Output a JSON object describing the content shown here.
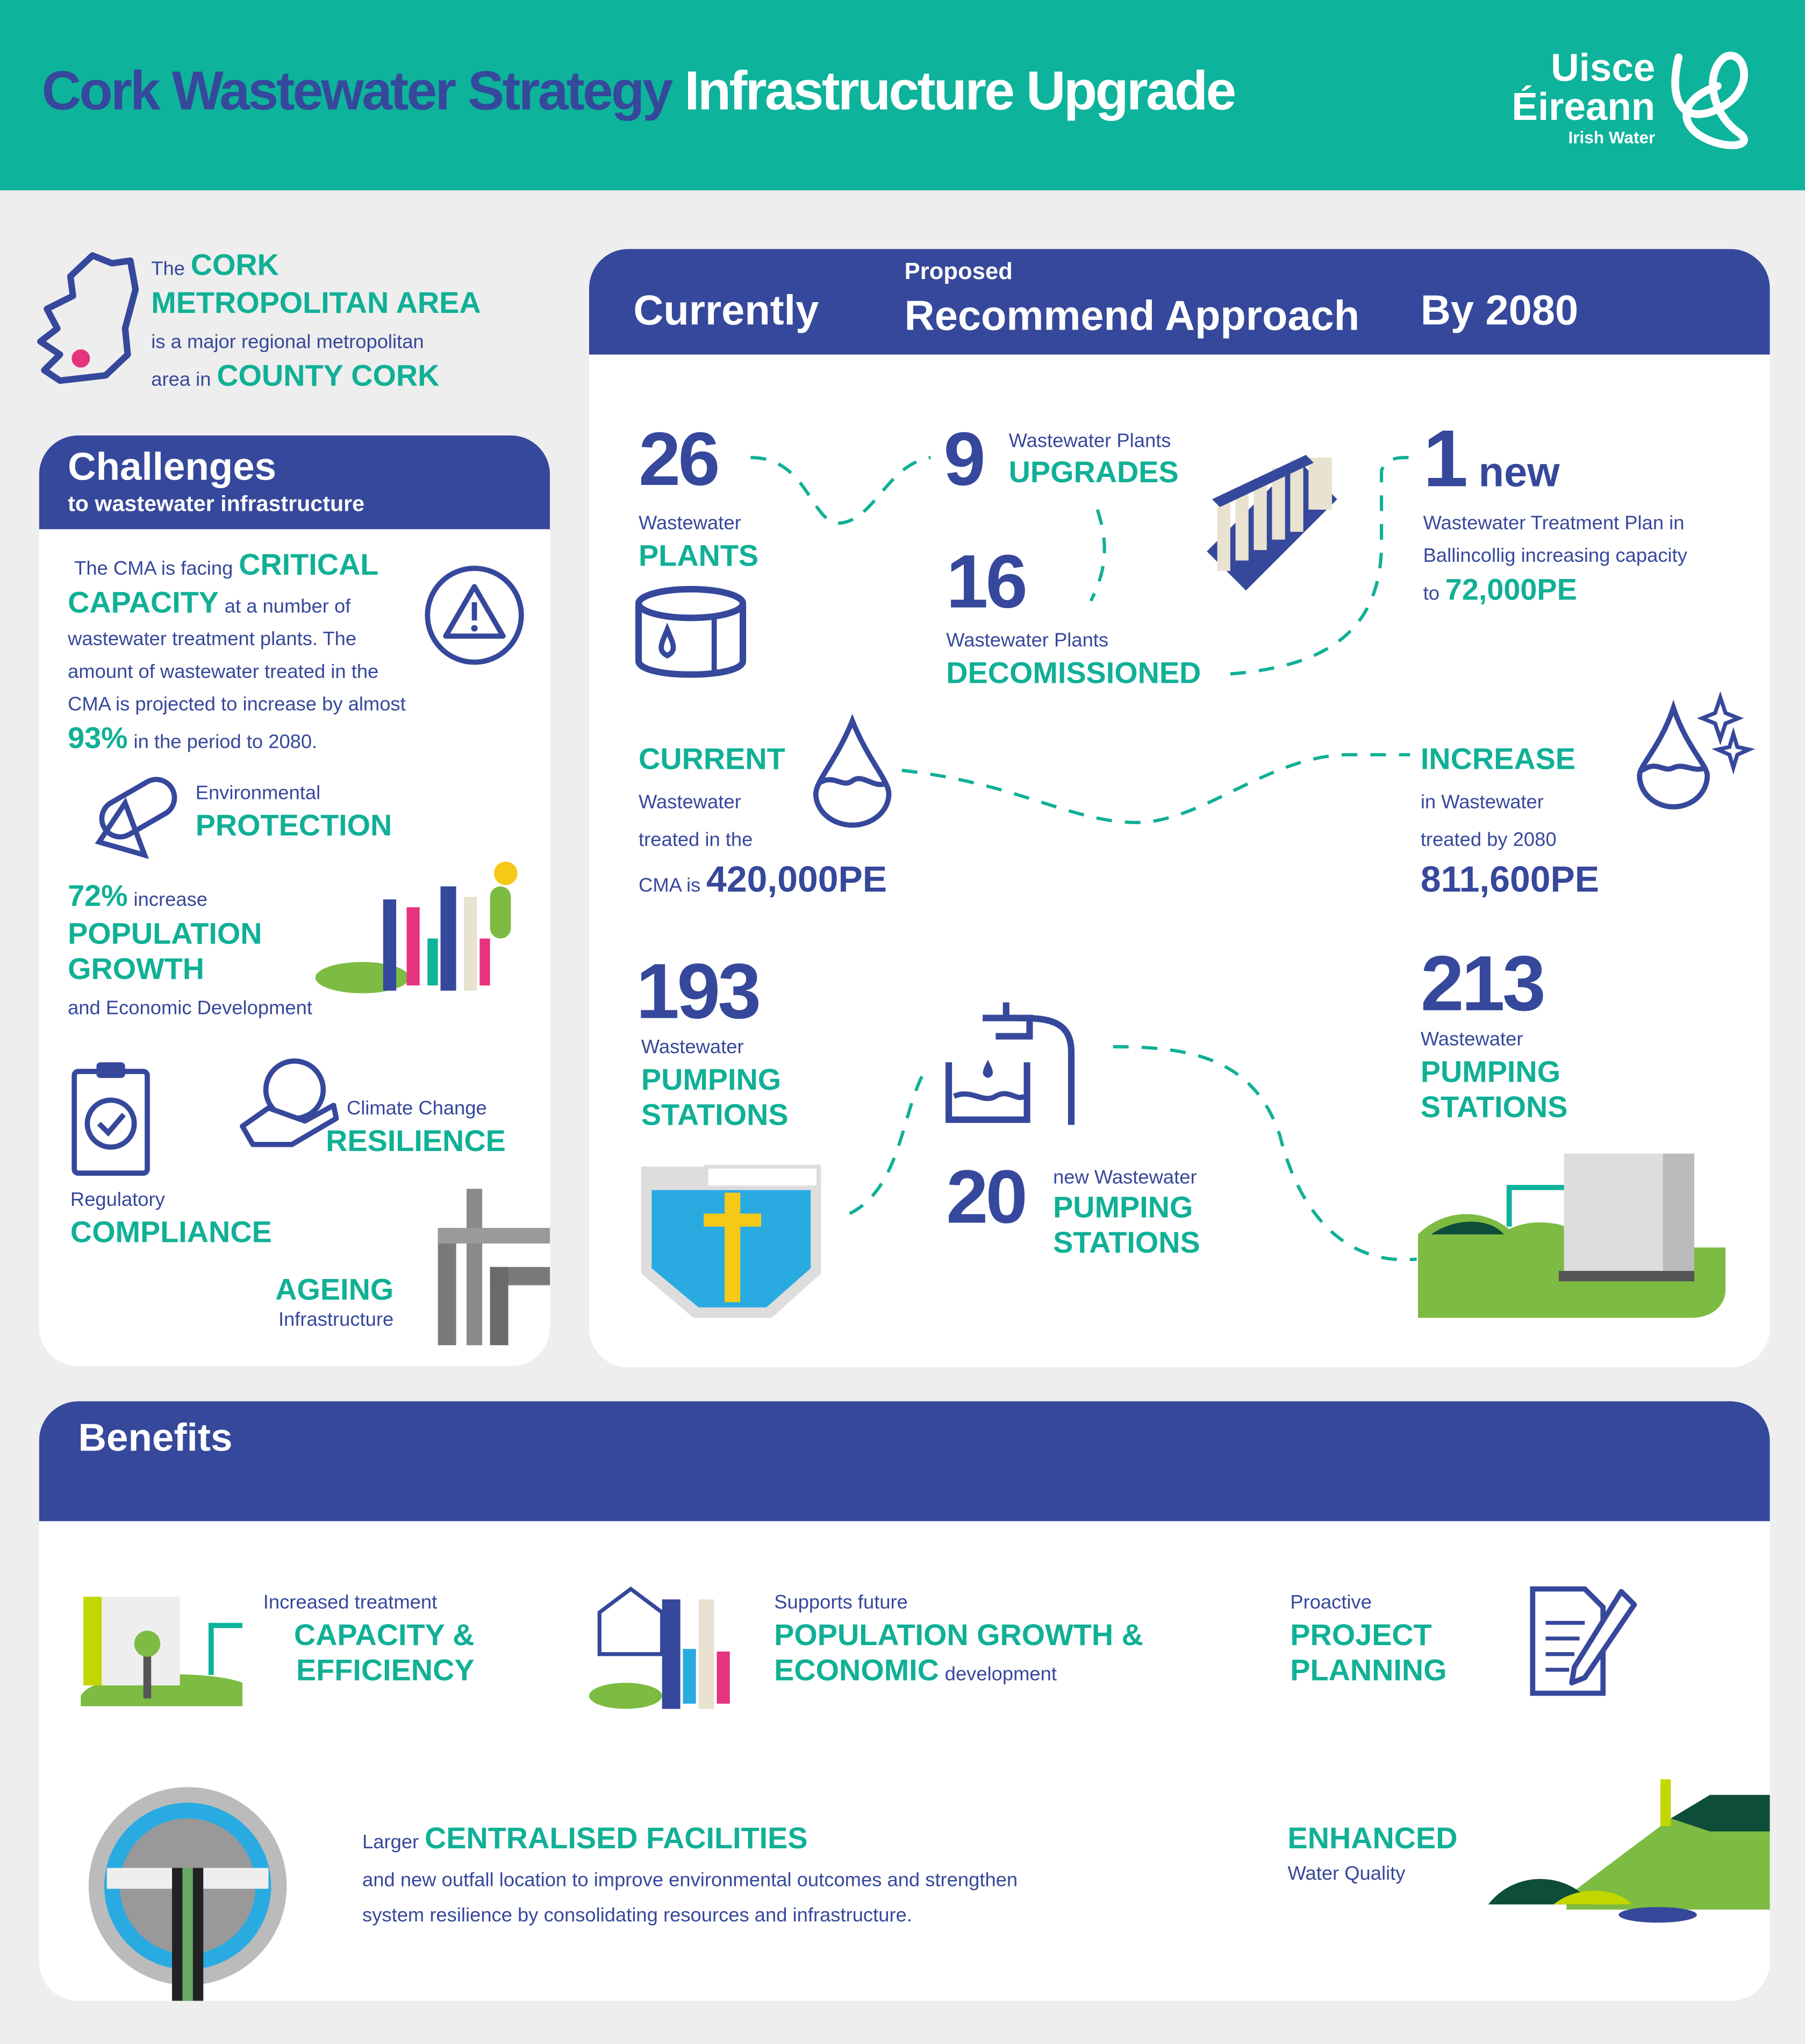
{
  "header": {
    "title_part1": "Cork Wastewater Strategy",
    "title_part2": "Infrastructure Upgrade",
    "logo": {
      "line1": "Uisce",
      "line2": "Éireann",
      "line3": "Irish Water"
    }
  },
  "intro": {
    "the": "The",
    "cork": "CORK",
    "metro": "METROPOLITAN AREA",
    "desc": "is a major regional metropolitan",
    "area_in": "area in",
    "county": "COUNTY CORK"
  },
  "challenges": {
    "title": "Challenges",
    "subtitle": "to wastewater infrastructure",
    "capacity": {
      "pre": "The CMA is facing",
      "critical": "CRITICAL",
      "capacity": "CAPACITY",
      "rest1": "at a number of",
      "rest2": "wastewater treatment plants. The",
      "rest3": "amount of wastewater treated in the",
      "rest4": "CMA is projected to increase by almost",
      "pct": "93%",
      "rest5": "in the period to 2080."
    },
    "env": {
      "small": "Environmental",
      "big": "PROTECTION"
    },
    "pop": {
      "pct": "72%",
      "inc": "increase",
      "big1": "POPULATION",
      "big2": "GROWTH",
      "small": "and Economic Development"
    },
    "climate": {
      "small": "Climate Change",
      "big": "RESILIENCE"
    },
    "reg": {
      "small": "Regulatory",
      "big": "COMPLIANCE"
    },
    "ageing": {
      "big": "AGEING",
      "small": "Infrastructure"
    }
  },
  "approach": {
    "currently": "Currently",
    "proposed": "Proposed",
    "recommend": "Recommend Approach",
    "by2080": "By 2080",
    "plants": {
      "num": "26",
      "small": "Wastewater",
      "big": "PLANTS"
    },
    "upgrades": {
      "num": "9",
      "small": "Wastewater Plants",
      "big": "UPGRADES"
    },
    "decom": {
      "num": "16",
      "small": "Wastewater Plants",
      "big": "DECOMISSIONED"
    },
    "new": {
      "num": "1",
      "word": "new",
      "l1": "Wastewater Treatment Plan in",
      "l2": "Ballincollig increasing capacity",
      "to": "to",
      "cap": "72,000PE"
    },
    "current": {
      "big": "CURRENT",
      "l1": "Wastewater",
      "l2": "treated in the",
      "l3": "CMA is",
      "val": "420,000PE"
    },
    "increase": {
      "big": "INCREASE",
      "l1": "in Wastewater",
      "l2": "treated by 2080",
      "val": "811,600PE"
    },
    "pump_now": {
      "num": "193",
      "small": "Wastewater",
      "big1": "PUMPING",
      "big2": "STATIONS"
    },
    "pump_new": {
      "num": "20",
      "small": "new Wastewater",
      "big1": "PUMPING",
      "big2": "STATIONS"
    },
    "pump_2080": {
      "num": "213",
      "small": "Wastewater",
      "big1": "PUMPING",
      "big2": "STATIONS"
    }
  },
  "benefits": {
    "title": "Benefits",
    "capacity": {
      "small": "Increased treatment",
      "big1": "CAPACITY &",
      "big2": "EFFICIENCY"
    },
    "population": {
      "small": "Supports future",
      "big1": "POPULATION GROWTH &",
      "big2": "ECONOMIC",
      "tail": "development"
    },
    "planning": {
      "small": "Proactive",
      "big1": "PROJECT",
      "big2": "PLANNING"
    },
    "central": {
      "pre": "Larger",
      "big": "CENTRALISED FACILITIES",
      "l1": "and new outfall location to improve environmental  outcomes and strengthen",
      "l2": "system resilience by consolidating resources and infrastructure."
    },
    "water": {
      "big": "ENHANCED",
      "small": "Water Quality"
    }
  },
  "colors": {
    "teal": "#0db39b",
    "navy": "#36489b",
    "green_text": "#10b096",
    "background": "#eeeeee"
  }
}
